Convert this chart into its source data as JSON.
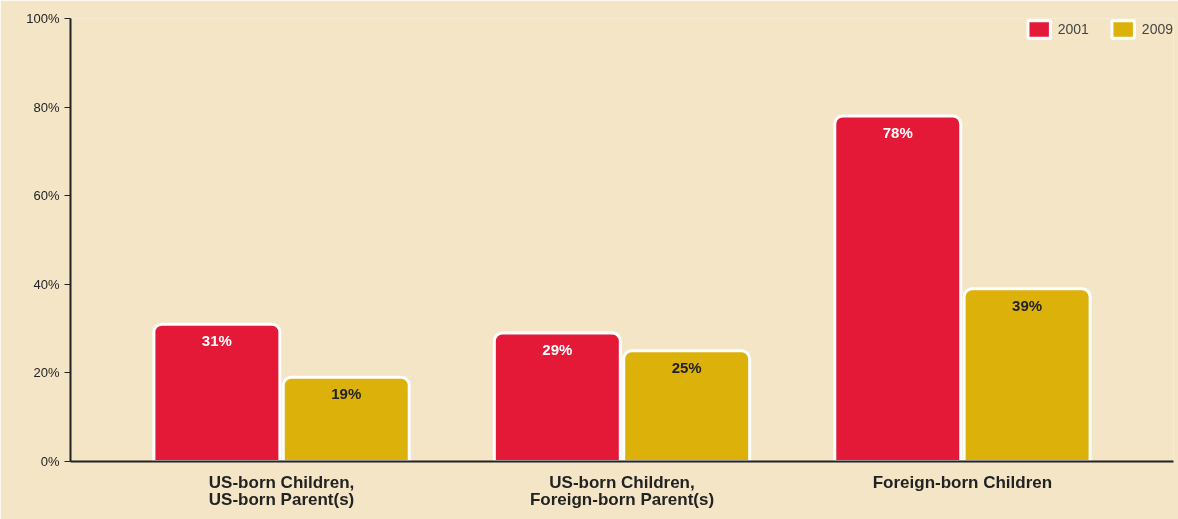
{
  "chart_data": {
    "type": "bar",
    "categories": [
      "US-born Children,\nUS-born Parent(s)",
      "US-born Children,\nForeign-born Parent(s)",
      "Foreign-born Children"
    ],
    "series": [
      {
        "name": "2001",
        "color": "#e31937",
        "values": [
          31,
          29,
          78
        ],
        "value_labels": [
          "31%",
          "29%",
          "78%"
        ]
      },
      {
        "name": "2009",
        "color": "#dcb10a",
        "values": [
          19,
          25,
          39
        ],
        "value_labels": [
          "19%",
          "25%",
          "39%"
        ]
      }
    ],
    "ylim": [
      0,
      100
    ],
    "yticks": [
      {
        "value": 0,
        "label": "0%"
      },
      {
        "value": 20,
        "label": "20%"
      },
      {
        "value": 40,
        "label": "40%"
      },
      {
        "value": 60,
        "label": "60%"
      },
      {
        "value": 80,
        "label": "80%"
      },
      {
        "value": 100,
        "label": "100%"
      }
    ],
    "grid": false,
    "legend": "top right"
  }
}
